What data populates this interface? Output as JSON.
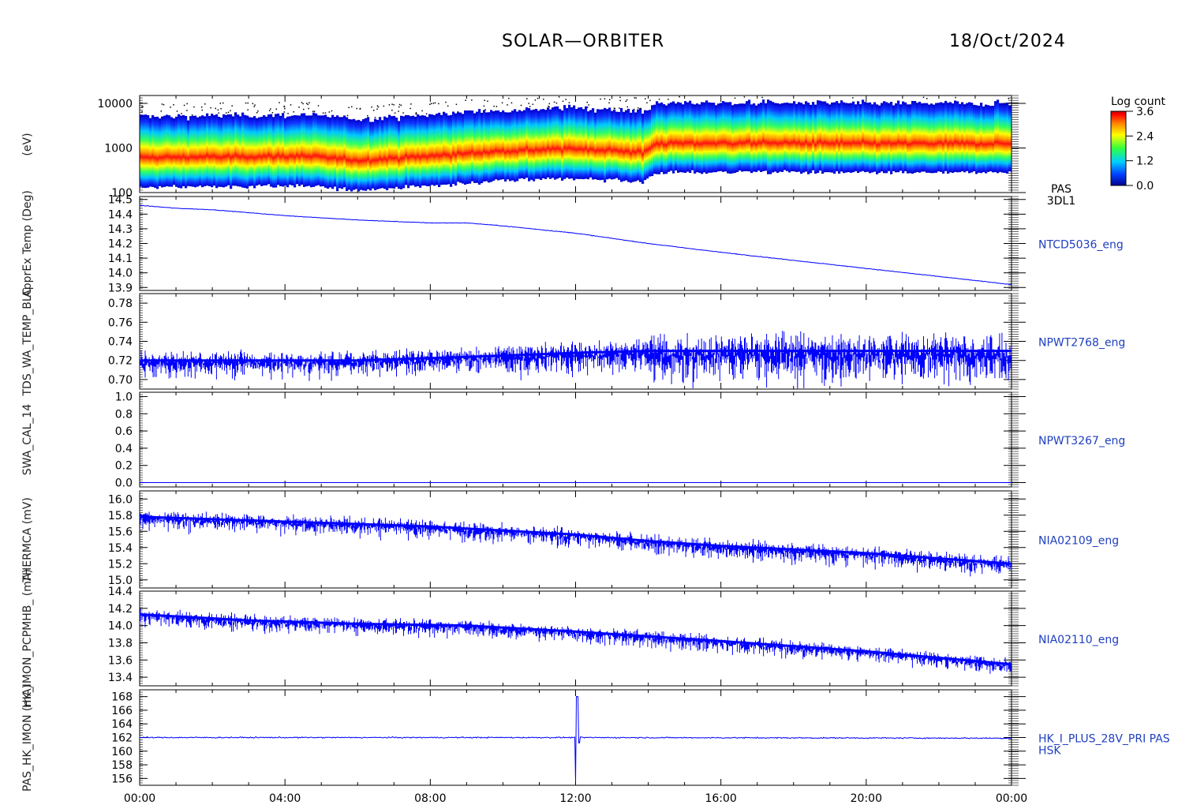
{
  "header": {
    "mission": "SOLAR—ORBITER",
    "date": "18/Oct/2024"
  },
  "colorbar": {
    "title": "Log count",
    "ticks": [
      "3.6",
      "2.4",
      "1.2",
      "0.0"
    ]
  },
  "colors": {
    "trace": "#0000ff",
    "right_label": "#1f3fbf"
  },
  "chart_data": [
    {
      "type": "heatmap",
      "panel": "energy-spectrogram",
      "ylabel": "(eV)",
      "yscale": "log",
      "ylim": [
        100,
        15000
      ],
      "yticks": [
        "10000",
        "1000",
        "100"
      ],
      "right_label": [
        "PAS",
        "3DL1"
      ],
      "peak_energy_eV": [
        [
          0,
          600
        ],
        [
          4.5,
          650
        ],
        [
          6,
          520
        ],
        [
          8,
          650
        ],
        [
          10,
          850
        ],
        [
          12,
          950
        ],
        [
          13.8,
          800
        ],
        [
          14.2,
          1400
        ],
        [
          17,
          1450
        ],
        [
          20,
          1400
        ],
        [
          24,
          1400
        ]
      ],
      "xlim": [
        "00:00",
        "24:00"
      ]
    },
    {
      "type": "line",
      "panel": "ntcd5036",
      "ylabel": "ApprEx Temp (Deg)",
      "ylim": [
        13.88,
        14.52
      ],
      "yticks": [
        "14.5",
        "14.4",
        "14.3",
        "14.2",
        "14.1",
        "14.0",
        "13.9"
      ],
      "right_label": "NTCD5036_eng",
      "x_hours": [
        0,
        1,
        2,
        4,
        6,
        8,
        9,
        10,
        12,
        14,
        16,
        20,
        24
      ],
      "values": [
        14.46,
        14.44,
        14.43,
        14.39,
        14.36,
        14.34,
        14.34,
        14.32,
        14.27,
        14.2,
        14.14,
        14.03,
        13.92
      ]
    },
    {
      "type": "line",
      "panel": "npwt2768",
      "ylabel": "TDS_WA_TEMP_BLC",
      "ylim": [
        0.69,
        0.79
      ],
      "yticks": [
        "0.78",
        "0.76",
        "0.74",
        "0.72",
        "0.70"
      ],
      "right_label": "NPWT2768_eng",
      "x_hours": [
        0,
        6,
        10,
        12,
        14,
        17,
        20,
        24
      ],
      "values": [
        0.72,
        0.72,
        0.725,
        0.728,
        0.73,
        0.73,
        0.73,
        0.73
      ]
    },
    {
      "type": "line",
      "panel": "npwt3267",
      "ylabel": "SWA_CAL_14",
      "ylim": [
        -0.05,
        1.05
      ],
      "yticks": [
        "1.0",
        "0.8",
        "0.6",
        "0.4",
        "0.2",
        "0.0"
      ],
      "right_label": "NPWT3267_eng",
      "x_hours": [
        0,
        24
      ],
      "values": [
        0.0,
        0.0
      ]
    },
    {
      "type": "line",
      "panel": "nia02109",
      "ylabel": "THERMCA (mV)",
      "ylim": [
        14.9,
        16.1
      ],
      "yticks": [
        "16.0",
        "15.8",
        "15.6",
        "15.4",
        "15.2",
        "15.0"
      ],
      "right_label": "NIA02109_eng",
      "x_hours": [
        0,
        2,
        4,
        8,
        12,
        14,
        16,
        20,
        24
      ],
      "values": [
        15.78,
        15.75,
        15.72,
        15.66,
        15.56,
        15.48,
        15.42,
        15.33,
        15.2
      ]
    },
    {
      "type": "line",
      "panel": "nia02110",
      "ylabel": "HK_IMON_PCPMHB_ (mA)",
      "ylim": [
        13.3,
        14.4
      ],
      "yticks": [
        "14.4",
        "14.2",
        "14.0",
        "13.8",
        "13.6",
        "13.4"
      ],
      "right_label": "NIA02110_eng",
      "x_hours": [
        0,
        3,
        6,
        9,
        12,
        16,
        20,
        24
      ],
      "values": [
        14.13,
        14.06,
        14.02,
        14.0,
        13.93,
        13.82,
        13.7,
        13.55
      ]
    },
    {
      "type": "line",
      "panel": "hk-i-plus-28v",
      "ylabel": "PAS_HK_IMON (mA)",
      "ylim": [
        155,
        169
      ],
      "yticks": [
        "168",
        "166",
        "164",
        "162",
        "160",
        "158",
        "156"
      ],
      "right_label": [
        "HK_I_PLUS_28V_PRI PAS",
        "HSK"
      ],
      "x_hours": [
        0,
        6,
        12,
        24
      ],
      "values": [
        162.0,
        162.0,
        162.0,
        161.9
      ],
      "spike": {
        "time": "12:00",
        "min": 155.5,
        "max": 168.0
      }
    }
  ],
  "xaxis": {
    "ticks": [
      "00:00",
      "04:00",
      "08:00",
      "12:00",
      "16:00",
      "20:00",
      "00:00"
    ]
  },
  "left_labels": [
    "(eV)",
    "ApprEx Temp (Deg)",
    "TDS_WA_TEMP_BLC",
    "SWA_CAL_14",
    "THERMCA (mV)",
    "HK_IMON_PCPMHB_ (mA)",
    "PAS_HK_IMON (mA)"
  ]
}
